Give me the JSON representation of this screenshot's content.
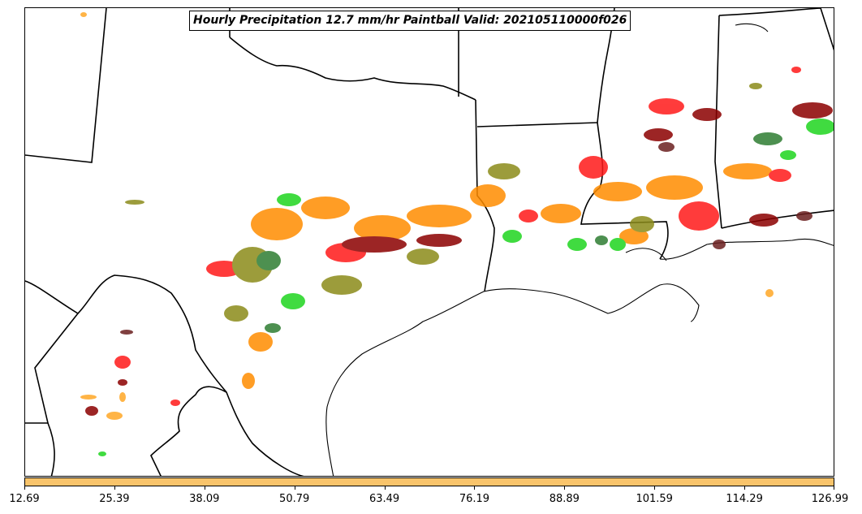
{
  "title": "Hourly Precipitation 12.7 mm/hr Paintball Valid: 202105110000f026",
  "colorbar": {
    "color": "#f9c46b",
    "ticks": [
      "12.69",
      "25.39",
      "38.09",
      "50.79",
      "63.49",
      "76.19",
      "88.89",
      "101.59",
      "114.29",
      "126.99"
    ]
  },
  "palette": {
    "orange": "#ff8c00",
    "dark_orange": "#ff6a00",
    "red": "#ff1a1a",
    "dark_red": "#8b0000",
    "green": "#1fd51f",
    "dark_green": "#2e7d32",
    "olive": "#8b8b1a",
    "light_orange": "#ffa726",
    "maroon": "#6b1f1f"
  }
}
